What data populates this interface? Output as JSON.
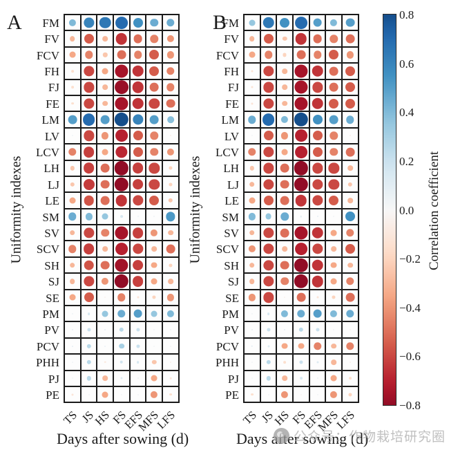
{
  "colorbar": {
    "label": "Correlation coefficient",
    "ticks": [
      "0.8",
      "0.6",
      "0.4",
      "0.2",
      "0.0",
      "−0.2",
      "−0.4",
      "−0.6",
      "−0.8"
    ],
    "vmax": 0.8,
    "vmin": -0.8,
    "colormap_anchors": [
      "#67001f",
      "#b2182b",
      "#d6604d",
      "#f4a582",
      "#fddbc7",
      "#f7f7f7",
      "#d1e5f0",
      "#92c5de",
      "#4393c3",
      "#2166ac",
      "#053061"
    ]
  },
  "watermark": {
    "text": "公众号：作物栽培研究圈"
  },
  "chart_data": [
    {
      "type": "scatter",
      "subtype": "correlation-bubble-matrix",
      "panel": "A",
      "title": "A",
      "xlabel": "Days after sowing (d)",
      "ylabel": "Uniformity indexes",
      "columns": [
        "TS",
        "JS",
        "HS",
        "FS",
        "EFS",
        "MFS",
        "LFS"
      ],
      "rows": [
        "FM",
        "FV",
        "FCV",
        "FH",
        "FJ",
        "FE",
        "LM",
        "LV",
        "LCV",
        "LH",
        "LJ",
        "LE",
        "SM",
        "SV",
        "SCV",
        "SH",
        "SJ",
        "SE",
        "PM",
        "PV",
        "PCV",
        "PHH",
        "PJ",
        "PE"
      ],
      "values": [
        [
          0.4,
          0.6,
          0.65,
          0.7,
          0.55,
          0.45,
          0.45
        ],
        [
          -0.3,
          -0.55,
          -0.3,
          -0.65,
          -0.5,
          -0.45,
          -0.4
        ],
        [
          -0.35,
          -0.45,
          -0.25,
          -0.5,
          -0.45,
          -0.55,
          -0.4
        ],
        [
          -0.15,
          -0.6,
          -0.35,
          -0.75,
          -0.65,
          -0.55,
          -0.45
        ],
        [
          -0.15,
          -0.6,
          -0.3,
          -0.78,
          -0.65,
          -0.5,
          -0.45
        ],
        [
          -0.15,
          -0.6,
          -0.3,
          -0.75,
          -0.65,
          -0.6,
          -0.5
        ],
        [
          0.5,
          0.7,
          0.5,
          0.8,
          0.6,
          0.5,
          0.38
        ],
        [
          0.03,
          -0.6,
          -0.4,
          -0.7,
          -0.55,
          -0.45,
          -0.05
        ],
        [
          -0.45,
          -0.62,
          -0.35,
          -0.68,
          -0.55,
          -0.45,
          -0.4
        ],
        [
          -0.25,
          -0.62,
          -0.5,
          -0.8,
          -0.62,
          -0.6,
          -0.2
        ],
        [
          -0.25,
          -0.63,
          -0.5,
          -0.8,
          -0.62,
          -0.6,
          -0.2
        ],
        [
          -0.35,
          -0.57,
          -0.5,
          -0.65,
          -0.6,
          -0.55,
          -0.25
        ],
        [
          0.45,
          0.4,
          0.35,
          0.15,
          0.05,
          0.04,
          0.52
        ],
        [
          -0.3,
          -0.6,
          -0.45,
          -0.75,
          -0.62,
          -0.4,
          -0.3
        ],
        [
          -0.45,
          -0.62,
          -0.3,
          -0.7,
          -0.6,
          -0.3,
          -0.5
        ],
        [
          -0.3,
          -0.57,
          -0.5,
          -0.76,
          -0.62,
          -0.35,
          -0.2
        ],
        [
          -0.3,
          -0.6,
          -0.4,
          -0.8,
          -0.62,
          -0.35,
          -0.3
        ],
        [
          -0.35,
          -0.55,
          -0.03,
          -0.45,
          -0.12,
          -0.2,
          -0.4
        ],
        [
          0.04,
          0.15,
          0.35,
          0.45,
          0.5,
          0.35,
          0.4
        ],
        [
          0.08,
          0.2,
          0.08,
          0.25,
          0.2,
          0.03,
          0.04
        ],
        [
          0.08,
          0.25,
          0.06,
          0.3,
          0.2,
          0.02,
          0.03
        ],
        [
          0.03,
          0.25,
          -0.1,
          0.18,
          0.15,
          -0.25,
          -0.05
        ],
        [
          0.02,
          0.25,
          -0.3,
          0.12,
          0.05,
          -0.35,
          -0.1
        ],
        [
          -0.12,
          0.03,
          -0.35,
          0.02,
          0.03,
          -0.4,
          -0.15
        ]
      ]
    },
    {
      "type": "scatter",
      "subtype": "correlation-bubble-matrix",
      "panel": "B",
      "title": "B",
      "xlabel": "Days after sowing (d)",
      "ylabel": "Uniformity indexes",
      "columns": [
        "TS",
        "JS",
        "HS",
        "FS",
        "EFS",
        "MFS",
        "LFS"
      ],
      "rows": [
        "FM",
        "FV",
        "FCV",
        "FH",
        "FJ",
        "FE",
        "LM",
        "LV",
        "LCV",
        "LH",
        "LJ",
        "LE",
        "SM",
        "SV",
        "SCV",
        "SH",
        "SJ",
        "SE",
        "PM",
        "PV",
        "PCV",
        "PHH",
        "PJ",
        "PE"
      ],
      "values": [
        [
          0.35,
          0.65,
          0.55,
          0.7,
          0.5,
          0.4,
          0.5
        ],
        [
          -0.3,
          -0.55,
          -0.25,
          -0.65,
          -0.5,
          -0.45,
          -0.5
        ],
        [
          -0.35,
          -0.45,
          -0.2,
          -0.5,
          -0.45,
          -0.55,
          -0.4
        ],
        [
          -0.12,
          -0.6,
          -0.3,
          -0.75,
          -0.65,
          -0.5,
          -0.55
        ],
        [
          -0.12,
          -0.6,
          -0.3,
          -0.75,
          -0.6,
          -0.5,
          -0.55
        ],
        [
          -0.12,
          -0.6,
          -0.3,
          -0.75,
          -0.65,
          -0.55,
          -0.55
        ],
        [
          0.45,
          0.7,
          0.4,
          0.8,
          0.55,
          0.5,
          0.45
        ],
        [
          0.02,
          -0.55,
          -0.4,
          -0.7,
          -0.55,
          -0.45,
          -0.05
        ],
        [
          -0.45,
          -0.6,
          -0.35,
          -0.7,
          -0.55,
          -0.45,
          -0.5
        ],
        [
          -0.25,
          -0.6,
          -0.5,
          -0.8,
          -0.6,
          -0.6,
          -0.3
        ],
        [
          -0.3,
          -0.6,
          -0.5,
          -0.8,
          -0.6,
          -0.6,
          -0.25
        ],
        [
          -0.35,
          -0.55,
          -0.5,
          -0.65,
          -0.6,
          -0.55,
          -0.3
        ],
        [
          0.4,
          0.35,
          0.45,
          0.1,
          0.08,
          0.03,
          0.55
        ],
        [
          -0.3,
          -0.6,
          -0.5,
          -0.75,
          -0.65,
          -0.35,
          -0.45
        ],
        [
          -0.4,
          -0.6,
          -0.3,
          -0.7,
          -0.6,
          -0.3,
          -0.55
        ],
        [
          -0.3,
          -0.6,
          -0.5,
          -0.8,
          -0.65,
          -0.35,
          -0.3
        ],
        [
          -0.3,
          -0.6,
          -0.45,
          -0.8,
          -0.65,
          -0.35,
          -0.45
        ],
        [
          -0.4,
          -0.6,
          -0.03,
          -0.5,
          -0.12,
          -0.2,
          -0.5
        ],
        [
          0.03,
          0.15,
          0.4,
          0.45,
          0.5,
          0.4,
          0.45
        ],
        [
          0.08,
          0.2,
          0.08,
          0.25,
          0.2,
          0.03,
          -0.03
        ],
        [
          0.1,
          0.12,
          -0.35,
          -0.35,
          -0.45,
          -0.3,
          -0.45
        ],
        [
          0.02,
          0.25,
          -0.15,
          0.2,
          0.12,
          -0.3,
          -0.05
        ],
        [
          0.02,
          0.25,
          -0.3,
          0.15,
          0.05,
          -0.35,
          -0.15
        ],
        [
          -0.15,
          0.03,
          -0.4,
          -0.02,
          0.02,
          -0.4,
          -0.2
        ]
      ]
    }
  ]
}
